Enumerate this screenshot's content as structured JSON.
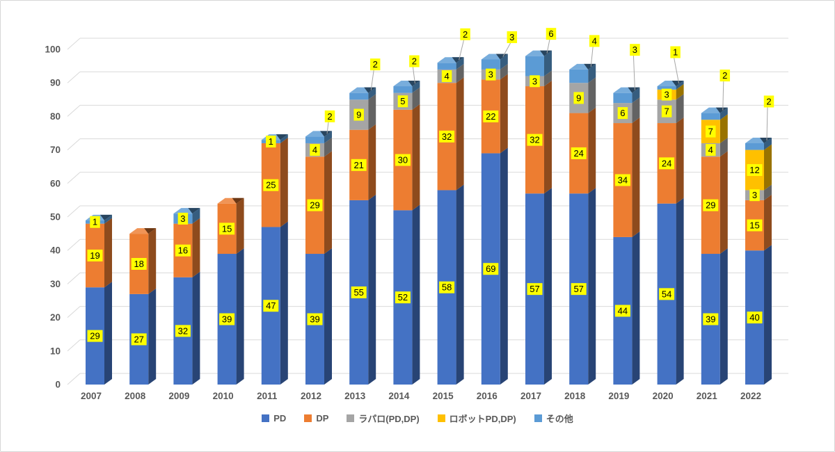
{
  "chart_data": {
    "type": "bar",
    "variant": "3d-stacked-column",
    "title": "",
    "categories": [
      "2007",
      "2008",
      "2009",
      "2010",
      "2011",
      "2012",
      "2013",
      "2014",
      "2015",
      "2016",
      "2017",
      "2018",
      "2019",
      "2020",
      "2021",
      "2022"
    ],
    "series": [
      {
        "name": "PD",
        "color": "#4472C4",
        "values": [
          29,
          27,
          32,
          39,
          47,
          39,
          55,
          52,
          58,
          69,
          57,
          57,
          44,
          54,
          39,
          40
        ]
      },
      {
        "name": "DP",
        "color": "#ED7D31",
        "values": [
          19,
          18,
          16,
          15,
          25,
          29,
          21,
          30,
          32,
          22,
          32,
          24,
          34,
          24,
          29,
          15
        ]
      },
      {
        "name": "ラパロ(PD,DP)",
        "color": "#A5A5A5",
        "values": [
          0,
          0,
          0,
          0,
          0,
          4,
          9,
          5,
          4,
          3,
          3,
          9,
          6,
          7,
          4,
          3
        ]
      },
      {
        "name": "ロボットPD,DP)",
        "color": "#FFC000",
        "values": [
          0,
          0,
          0,
          0,
          0,
          0,
          0,
          0,
          0,
          0,
          0,
          0,
          0,
          3,
          7,
          12
        ]
      },
      {
        "name": "その他",
        "color": "#5B9BD5",
        "values": [
          1,
          0,
          3,
          0,
          1,
          2,
          2,
          2,
          2,
          3,
          6,
          4,
          3,
          1,
          2,
          2
        ]
      }
    ],
    "ylim": [
      0,
      100
    ],
    "ytick_step": 10,
    "yticklabels": [
      "0",
      "10",
      "20",
      "30",
      "40",
      "50",
      "60",
      "70",
      "80",
      "90",
      "100"
    ],
    "grid": true,
    "legend_position": "bottom",
    "data_label_style": {
      "background": "#FFFF00",
      "text_color": "#000000"
    },
    "callout_categories": [
      "2012",
      "2013",
      "2014",
      "2015",
      "2016",
      "2017",
      "2018",
      "2019",
      "2020",
      "2021",
      "2022"
    ],
    "gridline_color": "#D9D9D9",
    "leader_line_color": "#A6A6A6",
    "axis_text_color": "#595959"
  }
}
